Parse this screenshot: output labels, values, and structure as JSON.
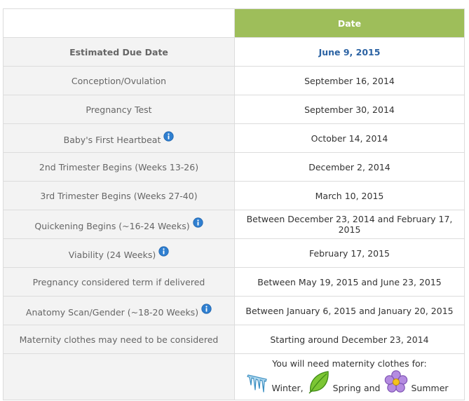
{
  "header": {
    "date_label": "Date"
  },
  "rows": [
    {
      "label": "Estimated Due Date",
      "value": "June 9, 2015",
      "info": false
    },
    {
      "label": "Conception/Ovulation",
      "value": "September 16, 2014",
      "info": false
    },
    {
      "label": "Pregnancy Test",
      "value": "September 30, 2014",
      "info": false
    },
    {
      "label": "Baby's First Heartbeat",
      "value": "October 14, 2014",
      "info": true
    },
    {
      "label": "2nd Trimester Begins (Weeks 13-26)",
      "value": "December 2, 2014",
      "info": false
    },
    {
      "label": "3rd Trimester Begins (Weeks 27-40)",
      "value": "March 10, 2015",
      "info": false
    },
    {
      "label": "Quickening Begins (~16-24 Weeks)",
      "value": "Between December 23, 2014 and February 17, 2015",
      "info": true
    },
    {
      "label": "Viability (24 Weeks)",
      "value": "February 17, 2015",
      "info": true
    },
    {
      "label": "Pregnancy considered term if delivered",
      "value": "Between May 19, 2015 and June 23, 2015",
      "info": false
    },
    {
      "label": "Anatomy Scan/Gender (~18-20 Weeks)",
      "value": "Between January 6, 2015 and January 20, 2015",
      "info": true
    },
    {
      "label": "Maternity clothes may need to be considered",
      "value": "Starting around December 23, 2014",
      "info": false
    }
  ],
  "maternity": {
    "note": "You will need maternity clothes for:",
    "seasons": [
      {
        "label": "Winter,",
        "icon": "icicle-icon"
      },
      {
        "label": "Spring and",
        "icon": "leaf-icon"
      },
      {
        "label": "Summer",
        "icon": "flower-icon"
      }
    ]
  },
  "colors": {
    "header_bg": "#9ebe5a",
    "due_date_value": "#2c63a3",
    "label_bg": "#f3f3f3",
    "info_icon": "#2f7fd0"
  }
}
